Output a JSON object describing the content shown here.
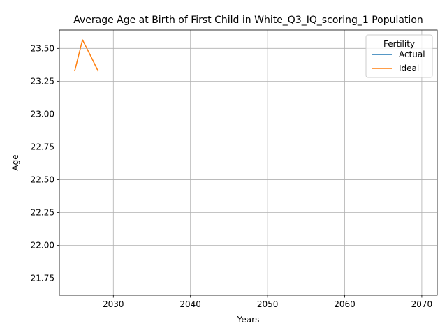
{
  "chart_data": {
    "type": "line",
    "title": "Average Age at Birth of First Child in White_Q3_IQ_scoring_1 Population",
    "xlabel": "Years",
    "ylabel": "Age",
    "xlim": [
      2023,
      2072
    ],
    "ylim": [
      21.62,
      23.64
    ],
    "xticks": [
      2030,
      2040,
      2050,
      2060,
      2070
    ],
    "xtick_labels": [
      "2030",
      "2040",
      "2050",
      "2060",
      "2070"
    ],
    "yticks": [
      21.75,
      22.0,
      22.25,
      22.5,
      22.75,
      23.0,
      23.25,
      23.5
    ],
    "ytick_labels": [
      "21.75",
      "22.00",
      "22.25",
      "22.50",
      "22.75",
      "23.00",
      "23.25",
      "23.50"
    ],
    "grid": true,
    "legend": {
      "title": "Fertility",
      "placement": "top-right"
    },
    "series": [
      {
        "name": "Actual",
        "color": "#1f77b4",
        "x": [],
        "y": []
      },
      {
        "name": "Ideal",
        "color": "#ff7f0e",
        "x": [
          2025,
          2026,
          2027,
          2028
        ],
        "y": [
          23.33,
          23.565,
          23.45,
          23.33
        ]
      }
    ]
  }
}
